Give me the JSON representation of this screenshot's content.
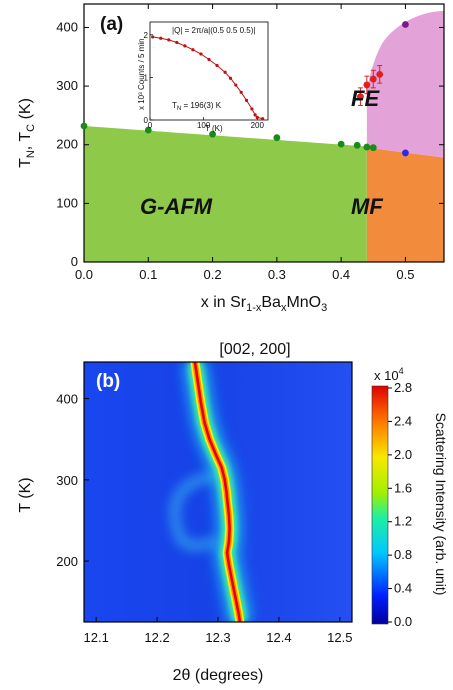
{
  "chart_data": [
    {
      "panel_label": "(a)",
      "type": "scatter",
      "xlabel": "x in Sr1-xBaxMnO3",
      "xlabel_parts": {
        "a": "x in Sr",
        "b": "1-x",
        "c": "Ba",
        "d": "x",
        "e": "MnO",
        "f": "3"
      },
      "ylabel": "TN, TC (K)",
      "ylabel_parts": {
        "a": "T",
        "b": "N",
        "c": ", T",
        "d": "C",
        "e": " (K)"
      },
      "xlim": [
        0.0,
        0.56
      ],
      "ylim": [
        0,
        440
      ],
      "xticks": [
        0.0,
        0.1,
        0.2,
        0.3,
        0.4,
        0.5
      ],
      "xtick_labels": [
        "0.0",
        "0.1",
        "0.2",
        "0.3",
        "0.4",
        "0.5"
      ],
      "yticks": [
        0,
        100,
        200,
        300,
        400
      ],
      "ytick_labels": [
        "0",
        "100",
        "200",
        "300",
        "400"
      ],
      "regions": {
        "gafm": {
          "label": "G-AFM",
          "color": "#8fc94a",
          "boundary_x": [
            0.0,
            0.44
          ],
          "boundary_T": [
            232,
            197
          ]
        },
        "mf": {
          "label": "MF",
          "color": "#f28c3c",
          "x_range": [
            0.44,
            0.56
          ],
          "upper_T": [
            195,
            178
          ]
        },
        "fe": {
          "label": "FE",
          "color": "#e3a3d9"
        }
      },
      "series": [
        {
          "color": "#1a8a1a",
          "x": [
            0.0,
            0.1,
            0.2,
            0.3,
            0.4,
            0.425,
            0.44,
            0.45
          ],
          "y": [
            232,
            225,
            218,
            212,
            201,
            199,
            196,
            195
          ]
        },
        {
          "color": "#e02020",
          "x": [
            0.43,
            0.44,
            0.45,
            0.46
          ],
          "y": [
            282,
            302,
            312,
            320
          ],
          "yerr": [
            15,
            15,
            15,
            15
          ]
        },
        {
          "color": "#7a1a8a",
          "x": [
            0.5
          ],
          "y": [
            405
          ]
        },
        {
          "color": "#2a2aee",
          "x": [
            0.5
          ],
          "y": [
            186
          ]
        }
      ],
      "inset": {
        "title": "|Q| = 2π/a|(0.5 0.5 0.5)|",
        "ylabel": "x 10³ Counts / 5 min",
        "xlabel": "T (K)",
        "annotation": "TN = 196(3) K",
        "annotation_parts": {
          "a": "T",
          "b": "N",
          "c": " = 196(3) K"
        },
        "xlim": [
          0,
          220
        ],
        "ylim": [
          0,
          2.3
        ],
        "xticks": [
          0,
          100,
          200
        ],
        "xtick_labels": [
          "0",
          "100",
          "200"
        ],
        "yticks": [
          0,
          1,
          2
        ],
        "ytick_labels": [
          "0",
          "1",
          "2"
        ],
        "x": [
          5,
          20,
          35,
          50,
          65,
          80,
          95,
          110,
          125,
          140,
          150,
          160,
          170,
          180,
          190,
          196,
          200,
          210
        ],
        "y": [
          1.95,
          1.92,
          1.88,
          1.82,
          1.74,
          1.65,
          1.55,
          1.42,
          1.28,
          1.12,
          0.98,
          0.82,
          0.65,
          0.46,
          0.26,
          0.12,
          0.06,
          0.03
        ]
      }
    },
    {
      "panel_label": "(b)",
      "type": "heatmap",
      "title": "[002, 200]",
      "xlabel": "2θ (degrees)",
      "ylabel": "T (K)",
      "xlim": [
        12.08,
        12.52
      ],
      "ylim": [
        125,
        445
      ],
      "xticks": [
        12.1,
        12.2,
        12.3,
        12.4,
        12.5
      ],
      "xtick_labels": [
        "12.1",
        "12.2",
        "12.3",
        "12.4",
        "12.5"
      ],
      "yticks": [
        200,
        300,
        400
      ],
      "ytick_labels": [
        "200",
        "300",
        "400"
      ],
      "ridge": {
        "T": [
          445,
          420,
          395,
          370,
          350,
          330,
          315,
          300,
          285,
          270,
          255,
          240,
          225,
          210,
          195,
          180,
          165,
          150,
          135,
          125
        ],
        "two_theta": [
          12.262,
          12.267,
          12.272,
          12.278,
          12.286,
          12.297,
          12.306,
          12.311,
          12.314,
          12.316,
          12.318,
          12.319,
          12.318,
          12.315,
          12.318,
          12.322,
          12.326,
          12.33,
          12.334,
          12.336
        ]
      },
      "ring": {
        "two_theta_left": 12.24,
        "two_theta_right": 12.3,
        "T_center": 265,
        "T_half": 40
      },
      "colorbar": {
        "label": "Scattering Intensity (arb. unit)",
        "scale_label": "x 10",
        "scale_exp": "4",
        "ticks": [
          "0.0",
          "0.4",
          "0.8",
          "1.2",
          "1.6",
          "2.0",
          "2.4",
          "2.8"
        ],
        "max": 2.8
      }
    }
  ]
}
